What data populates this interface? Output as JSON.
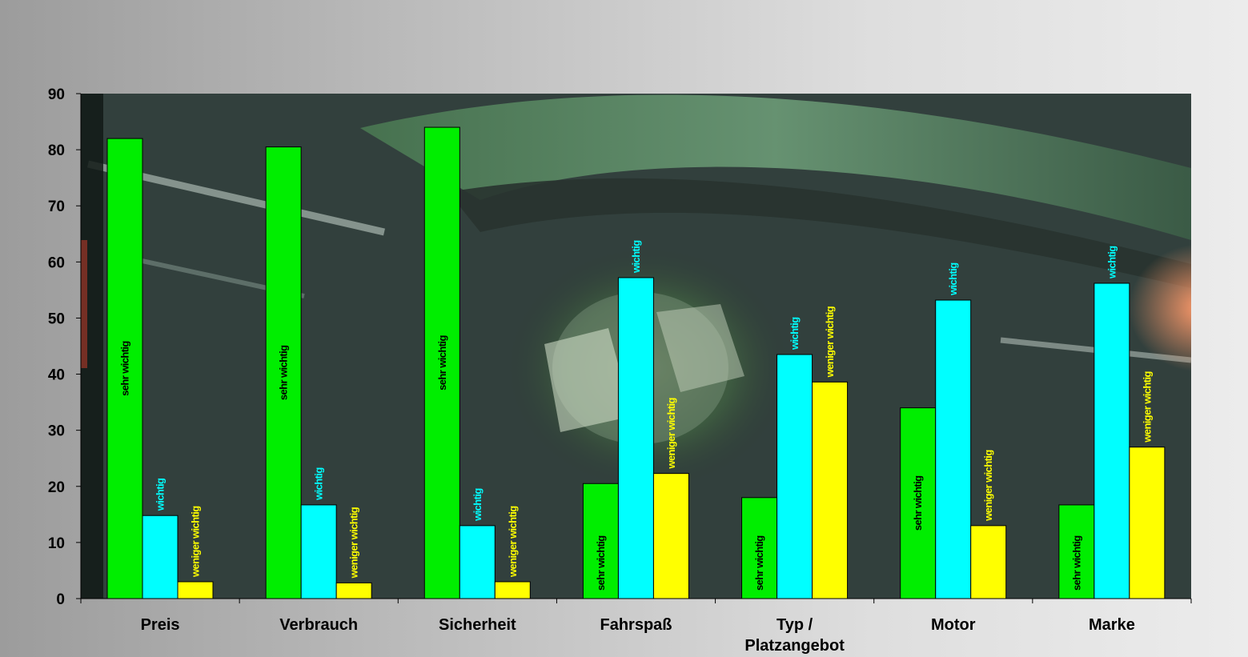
{
  "chart_data": {
    "type": "bar",
    "title": "",
    "xlabel": "",
    "ylabel": "",
    "ylim": [
      0,
      90
    ],
    "yticks": [
      0,
      10,
      20,
      30,
      40,
      50,
      60,
      70,
      80,
      90
    ],
    "grid": false,
    "legend": "none",
    "background": "photo of a car wheel",
    "categories": [
      [
        "Preis"
      ],
      [
        "Verbrauch"
      ],
      [
        "Sicherheit"
      ],
      [
        "Fahrspaß"
      ],
      [
        "Typ /",
        "Platzangebot"
      ],
      [
        "Motor"
      ],
      [
        "Marke"
      ]
    ],
    "series": [
      {
        "name": "sehr wichtig",
        "color": "#00ee00",
        "label_color": "#000000",
        "values": [
          82,
          80.5,
          84,
          20.5,
          18,
          34,
          16.7
        ]
      },
      {
        "name": "wichtig",
        "color": "#00ffff",
        "label_color": "#00ffff",
        "values": [
          14.8,
          16.7,
          13,
          57.2,
          43.5,
          53.2,
          56.2
        ]
      },
      {
        "name": "weniger wichtig",
        "color": "#ffff00",
        "label_color": "#ffff00",
        "values": [
          3,
          2.8,
          3,
          22.3,
          38.6,
          13,
          27
        ]
      }
    ]
  }
}
